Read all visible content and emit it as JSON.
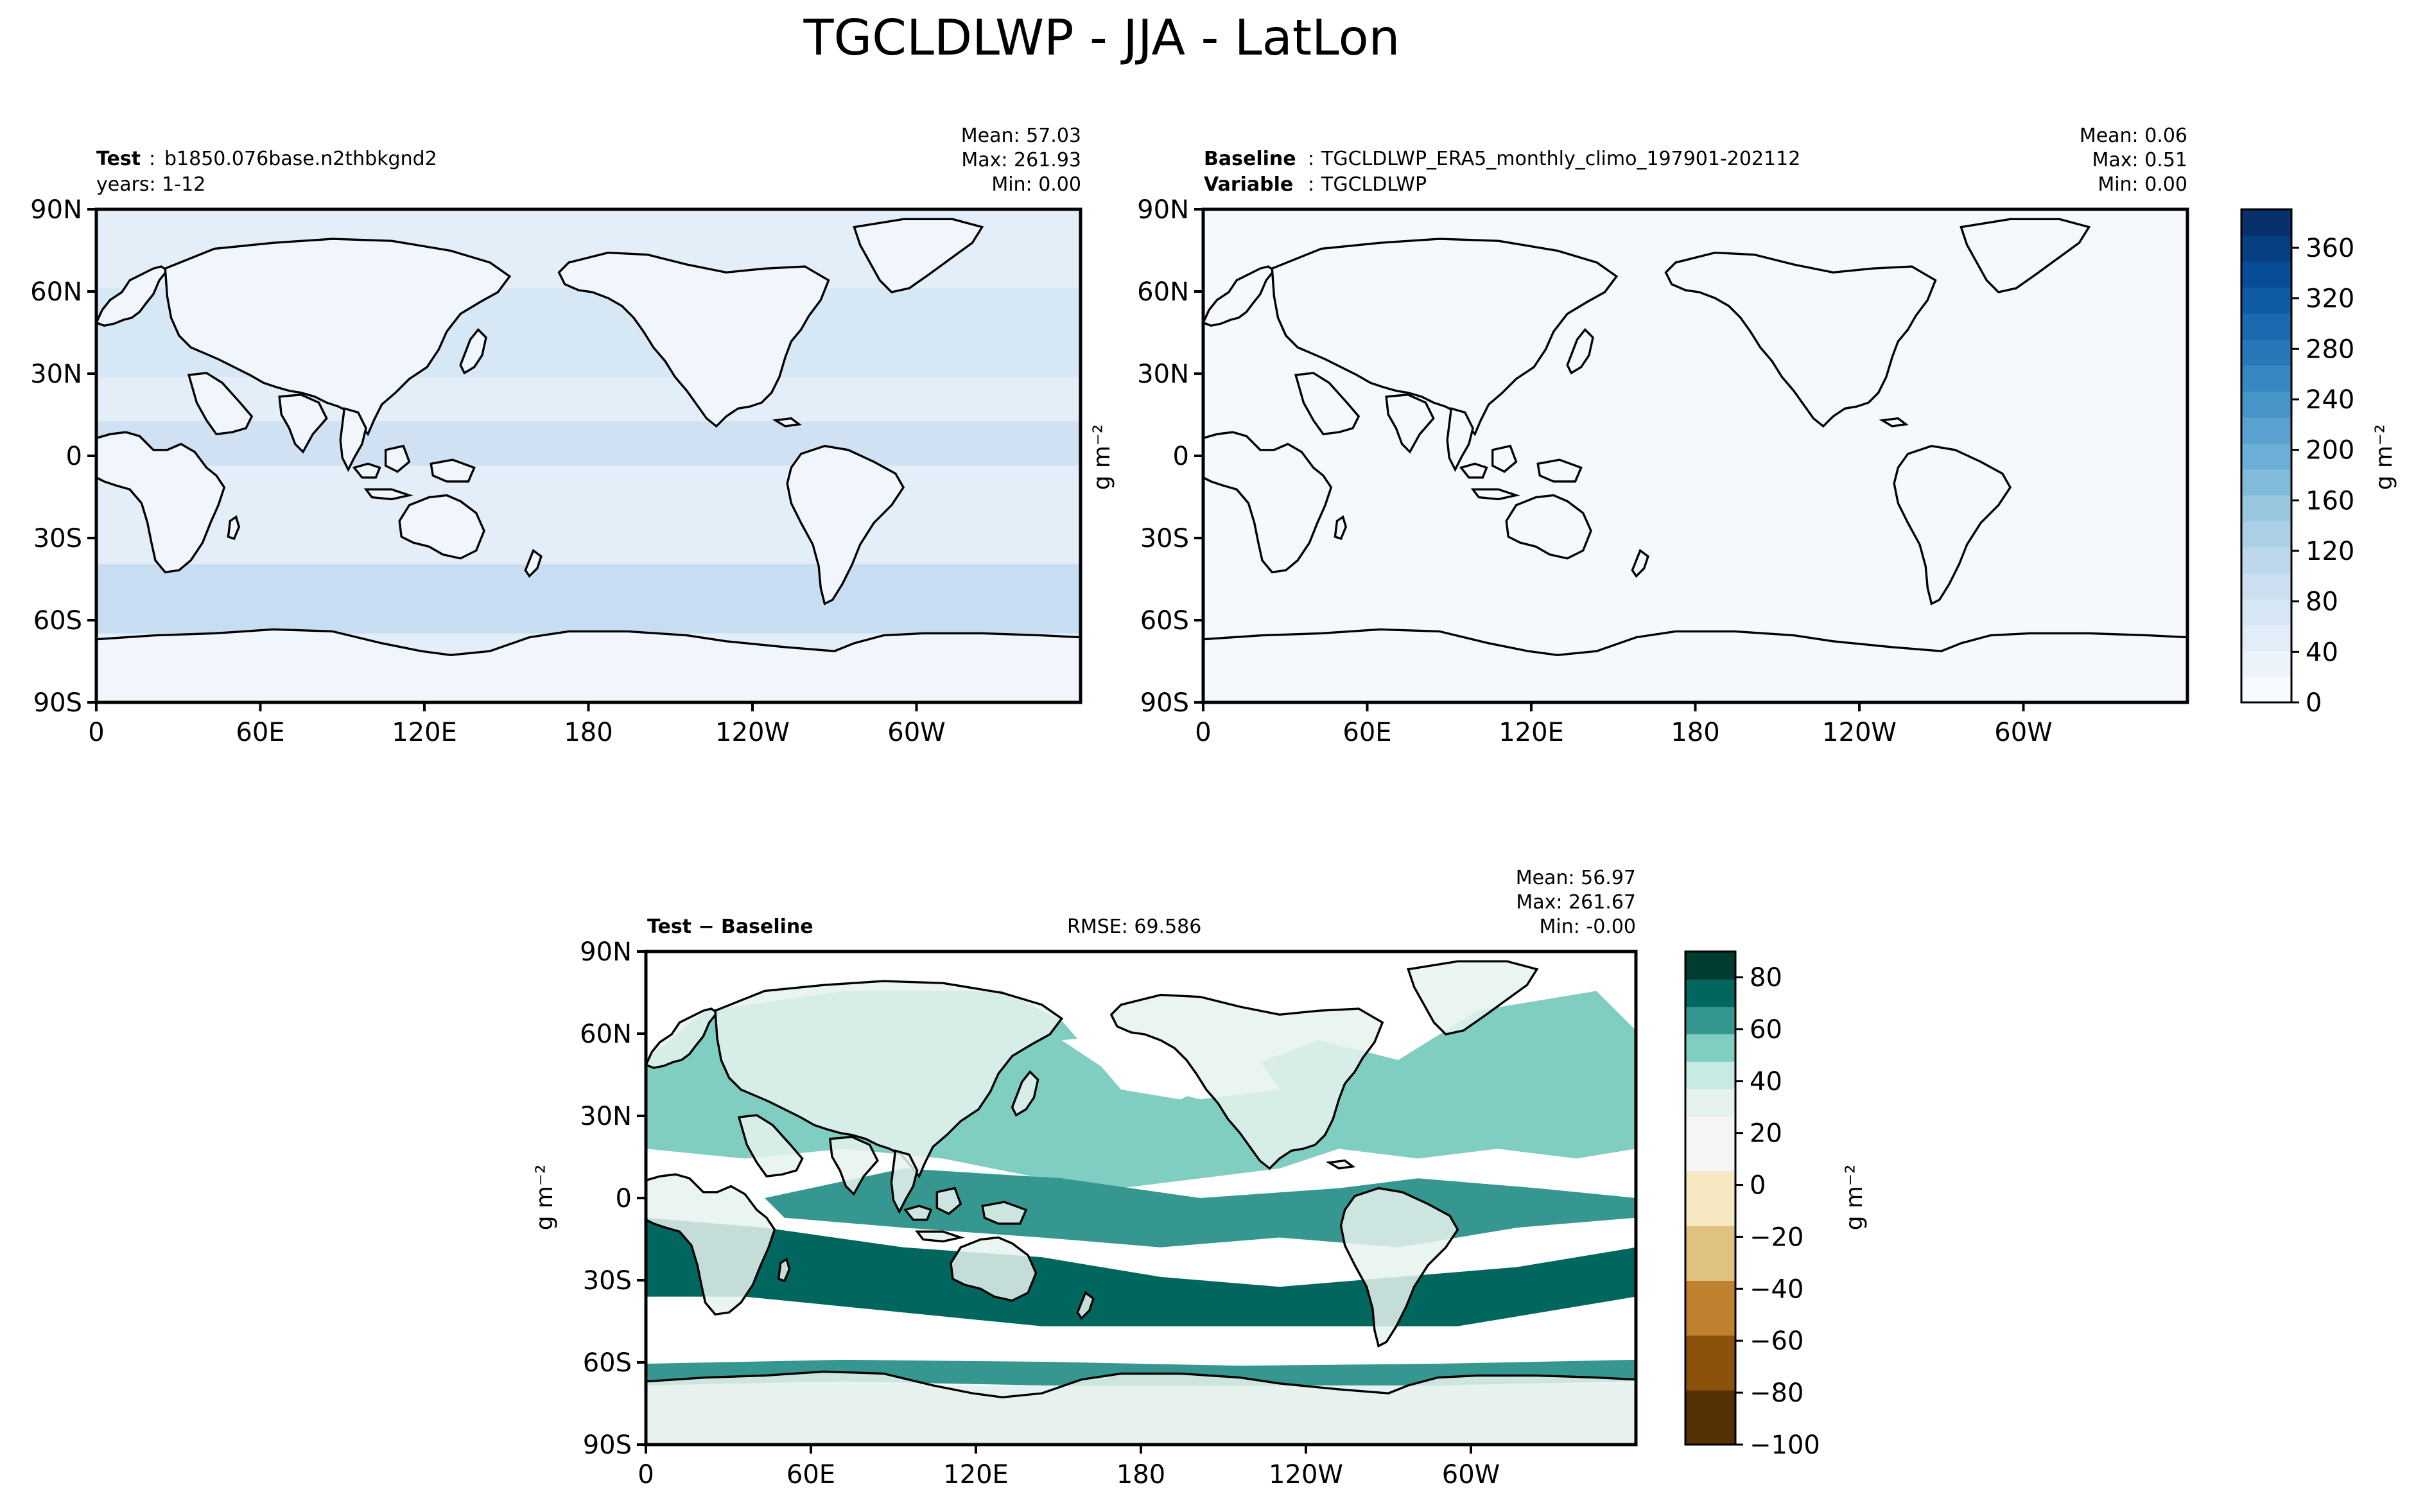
{
  "figure": {
    "title": "TGCLDLWP - JJA - LatLon"
  },
  "colors": {
    "test_sequential": [
      "#f7fbff",
      "#deebf7",
      "#c6dbef",
      "#9ecae1",
      "#6baed6",
      "#4292c6",
      "#2171b5",
      "#08519c",
      "#08306b"
    ],
    "diff_diverging_negative": [
      "#543005",
      "#8c510a",
      "#bf812d",
      "#dfc27d",
      "#f6e8c3",
      "#f5f5f5"
    ],
    "diff_diverging_positive": [
      "#e6f2ef",
      "#c7eae5",
      "#80cdc1",
      "#35978f",
      "#01665e",
      "#003c30"
    ],
    "coastline": "#000000"
  },
  "axis_ticks": {
    "lat": [
      "90N",
      "60N",
      "30N",
      "0",
      "30S",
      "60S",
      "90S"
    ],
    "lon": [
      "0",
      "60E",
      "120E",
      "180",
      "120W",
      "60W"
    ]
  },
  "panels": {
    "test": {
      "label_bold": "Test",
      "label_sep": ":",
      "label_value": "b1850.076base.n2thbkgnd2",
      "years": "years: 1-12",
      "stats": [
        "Mean: 57.03",
        "Max: 261.93",
        "Min:  0.00"
      ]
    },
    "baseline": {
      "label_bold": "Baseline",
      "label_sep": ":",
      "label_value": "TGCLDLWP_ERA5_monthly_climo_197901-202112",
      "variable_bold": "Variable",
      "variable_value": "TGCLDLWP",
      "stats": [
        "Mean:  0.06",
        "Max:  0.51",
        "Min:  0.00"
      ]
    },
    "diff": {
      "label": "Test − Baseline",
      "rmse": "RMSE: 69.586",
      "stats": [
        "Mean: 56.97",
        "Max: 261.67",
        "Min: -0.00"
      ]
    }
  },
  "colorbars": {
    "top": {
      "units": "g m⁻²",
      "ticks": [
        "360",
        "320",
        "280",
        "240",
        "200",
        "160",
        "120",
        "80",
        "40",
        "0"
      ]
    },
    "diff": {
      "units": "g m⁻²",
      "ticks": [
        "80",
        "60",
        "40",
        "20",
        "0",
        "−20",
        "−40",
        "−60",
        "−80",
        "−100"
      ]
    }
  },
  "axis_units": "g m⁻²",
  "chart_data": [
    {
      "type": "heatmap",
      "subtitle": "Test : b1850.076base.n2thbkgnd2",
      "projection": "PlateCarree (lon 0–360, centered 180)",
      "units": "g m⁻²",
      "stats": {
        "mean": 57.03,
        "max": 261.93,
        "min": 0.0
      },
      "colorbar_range": [
        0,
        380
      ],
      "colormap": "Blues",
      "x_ticks": [
        "0",
        "60E",
        "120E",
        "180",
        "120W",
        "60W"
      ],
      "y_ticks": [
        "90N",
        "60N",
        "30N",
        "0",
        "30S",
        "60S",
        "90S"
      ]
    },
    {
      "type": "heatmap",
      "subtitle": "Baseline : TGCLDLWP_ERA5_monthly_climo_197901-202112",
      "units": "g m⁻²",
      "stats": {
        "mean": 0.06,
        "max": 0.51,
        "min": 0.0
      },
      "colorbar_range": [
        0,
        380
      ],
      "colormap": "Blues",
      "x_ticks": [
        "0",
        "60E",
        "120E",
        "180",
        "120W",
        "60W"
      ],
      "y_ticks": [
        "90N",
        "60N",
        "30N",
        "0",
        "30S",
        "60S",
        "90S"
      ]
    },
    {
      "type": "heatmap",
      "subtitle": "Test − Baseline",
      "units": "g m⁻²",
      "rmse": 69.586,
      "stats": {
        "mean": 56.97,
        "max": 261.67,
        "min": -0.0
      },
      "colorbar_range": [
        -100,
        90
      ],
      "colormap": "BrBG",
      "x_ticks": [
        "0",
        "60E",
        "120E",
        "180",
        "120W",
        "60W"
      ],
      "y_ticks": [
        "90N",
        "60N",
        "30N",
        "0",
        "30S",
        "60S",
        "90S"
      ]
    }
  ]
}
